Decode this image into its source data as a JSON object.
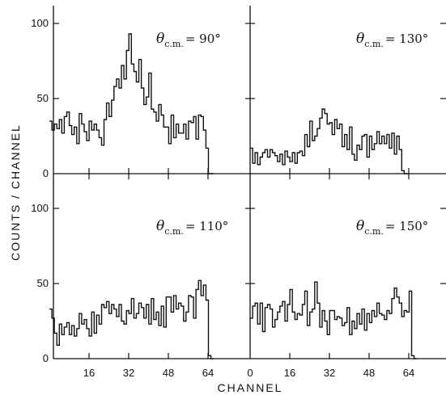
{
  "chart_data": {
    "type": "histogram",
    "layout": "2x2 panels sharing axes",
    "xlabel": "CHANNEL",
    "ylabel": "COUNTS / CHANNEL",
    "xlim": [
      0,
      80
    ],
    "ylim": [
      0,
      100
    ],
    "bin_width": 1,
    "x_ticks_bottom_left": [
      "16",
      "32",
      "48",
      "64"
    ],
    "x_ticks_bottom_right": [
      "0",
      "16",
      "32",
      "48",
      "64"
    ],
    "y_ticks": [
      "0",
      "50",
      "100"
    ],
    "panels": [
      {
        "position": "top-left",
        "label_theta": "θ",
        "label_sub": "c.m.",
        "label_angle": "= 90°",
        "values": [
          35,
          29,
          33,
          30,
          36,
          27,
          38,
          41,
          32,
          26,
          31,
          20,
          40,
          33,
          28,
          22,
          35,
          29,
          33,
          29,
          24,
          19,
          36,
          47,
          38,
          49,
          58,
          63,
          57,
          72,
          63,
          82,
          93,
          73,
          68,
          61,
          76,
          57,
          46,
          51,
          67,
          43,
          41,
          35,
          46,
          39,
          31,
          31,
          20,
          39,
          24,
          33,
          27,
          27,
          33,
          23,
          35,
          34,
          38,
          23,
          39,
          38,
          29,
          17,
          0,
          0
        ]
      },
      {
        "position": "top-right",
        "label_theta": "θ",
        "label_sub": "c.m.",
        "label_angle": "= 130°",
        "values": [
          17,
          7,
          14,
          6,
          11,
          14,
          16,
          11,
          16,
          14,
          12,
          8,
          13,
          6,
          15,
          11,
          8,
          14,
          7,
          14,
          15,
          12,
          26,
          18,
          35,
          22,
          25,
          30,
          37,
          43,
          40,
          33,
          34,
          26,
          36,
          30,
          33,
          18,
          26,
          16,
          31,
          13,
          9,
          19,
          16,
          25,
          26,
          11,
          25,
          16,
          20,
          28,
          20,
          25,
          20,
          26,
          17,
          27,
          13,
          25,
          16,
          2,
          0,
          0
        ]
      },
      {
        "position": "bottom-left",
        "label_theta": "θ",
        "label_sub": "c.m.",
        "label_angle": "= 110°",
        "values": [
          33,
          27,
          17,
          9,
          23,
          16,
          21,
          24,
          16,
          22,
          15,
          20,
          30,
          23,
          26,
          20,
          15,
          31,
          17,
          29,
          23,
          36,
          34,
          38,
          30,
          36,
          33,
          28,
          36,
          25,
          23,
          32,
          30,
          40,
          27,
          30,
          37,
          34,
          27,
          36,
          23,
          40,
          26,
          31,
          22,
          35,
          21,
          41,
          41,
          31,
          42,
          33,
          37,
          35,
          25,
          31,
          42,
          41,
          27,
          46,
          52,
          42,
          49,
          39,
          2,
          0
        ]
      },
      {
        "position": "bottom-right",
        "label_theta": "θ",
        "label_sub": "c.m.",
        "label_angle": "= 150°",
        "values": [
          27,
          35,
          37,
          23,
          37,
          18,
          34,
          36,
          33,
          21,
          26,
          31,
          35,
          38,
          25,
          36,
          46,
          31,
          26,
          30,
          29,
          36,
          45,
          22,
          31,
          33,
          51,
          37,
          21,
          32,
          25,
          16,
          32,
          32,
          26,
          28,
          27,
          22,
          24,
          34,
          16,
          25,
          20,
          30,
          23,
          33,
          19,
          30,
          24,
          32,
          28,
          37,
          30,
          29,
          26,
          32,
          30,
          40,
          47,
          41,
          37,
          28,
          32,
          31,
          45,
          2,
          0
        ]
      }
    ]
  }
}
